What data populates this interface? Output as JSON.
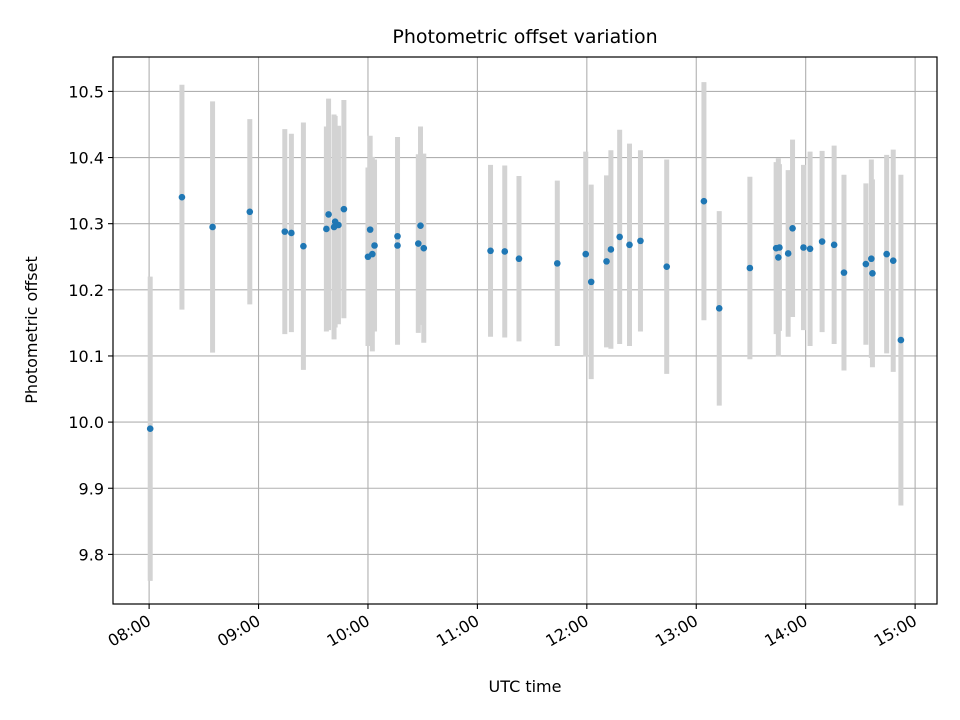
{
  "chart_data": {
    "type": "scatter",
    "title": "Photometric offset variation",
    "xlabel": "UTC time",
    "ylabel": "Photometric offset",
    "grid": true,
    "colors": {
      "points": "#1f77b4",
      "errorbars": "#d3d3d3",
      "grid": "#b0b0b0",
      "axes": "#000000"
    },
    "xlim": [
      7.67,
      15.2
    ],
    "ylim": [
      9.725,
      10.552
    ],
    "xticks": [
      8,
      9,
      10,
      11,
      12,
      13,
      14,
      15
    ],
    "xtick_labels": [
      "08:00",
      "09:00",
      "10:00",
      "11:00",
      "12:00",
      "13:00",
      "14:00",
      "15:00"
    ],
    "yticks": [
      9.8,
      9.9,
      10.0,
      10.1,
      10.2,
      10.3,
      10.4,
      10.5
    ],
    "ytick_labels": [
      "9.8",
      "9.9",
      "10.0",
      "10.1",
      "10.2",
      "10.3",
      "10.4",
      "10.5"
    ],
    "series": [
      {
        "name": "Photometric offset",
        "x": [
          8.01,
          8.3,
          8.58,
          8.92,
          9.24,
          9.3,
          9.41,
          9.62,
          9.64,
          9.69,
          9.7,
          9.73,
          9.78,
          10.0,
          10.02,
          10.04,
          10.06,
          10.27,
          10.27,
          10.46,
          10.48,
          10.51,
          11.12,
          11.25,
          11.38,
          11.73,
          11.99,
          12.04,
          12.18,
          12.22,
          12.3,
          12.39,
          12.49,
          12.73,
          13.07,
          13.21,
          13.49,
          13.73,
          13.75,
          13.76,
          13.84,
          13.88,
          13.98,
          14.04,
          14.15,
          14.26,
          14.35,
          14.55,
          14.6,
          14.61,
          14.74,
          14.8,
          14.87
        ],
        "y": [
          9.99,
          10.34,
          10.295,
          10.318,
          10.288,
          10.286,
          10.266,
          10.292,
          10.314,
          10.295,
          10.303,
          10.298,
          10.322,
          10.25,
          10.291,
          10.254,
          10.267,
          10.281,
          10.267,
          10.27,
          10.297,
          10.263,
          10.259,
          10.258,
          10.247,
          10.24,
          10.254,
          10.212,
          10.243,
          10.261,
          10.28,
          10.268,
          10.274,
          10.235,
          10.334,
          10.172,
          10.233,
          10.263,
          10.249,
          10.264,
          10.255,
          10.293,
          10.264,
          10.262,
          10.273,
          10.268,
          10.226,
          10.239,
          10.247,
          10.225,
          10.254,
          10.244,
          10.124
        ],
        "yerr": [
          0.23,
          0.17,
          0.19,
          0.14,
          0.155,
          0.15,
          0.187,
          0.155,
          0.175,
          0.17,
          0.16,
          0.15,
          0.165,
          0.135,
          0.142,
          0.147,
          0.13,
          0.15,
          0.15,
          0.135,
          0.15,
          0.143,
          0.13,
          0.13,
          0.125,
          0.125,
          0.155,
          0.147,
          0.13,
          0.15,
          0.162,
          0.153,
          0.137,
          0.162,
          0.18,
          0.147,
          0.138,
          0.13,
          0.15,
          0.126,
          0.126,
          0.134,
          0.125,
          0.147,
          0.137,
          0.15,
          0.148,
          0.122,
          0.15,
          0.142,
          0.15,
          0.168,
          0.25
        ]
      }
    ]
  }
}
